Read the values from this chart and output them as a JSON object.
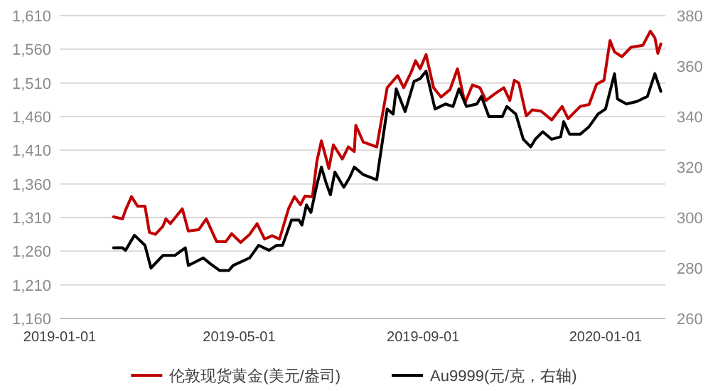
{
  "chart_data": {
    "type": "line",
    "xlim": [
      "2019-01-01",
      "2020-02-10"
    ],
    "xticks": [
      "2019-01-01",
      "2019-05-01",
      "2019-09-01",
      "2020-01-01"
    ],
    "ylim": [
      1160,
      1610
    ],
    "yticks": [
      {
        "value": 1160,
        "label": "1,160"
      },
      {
        "value": 1210,
        "label": "1,210"
      },
      {
        "value": 1260,
        "label": "1,260"
      },
      {
        "value": 1310,
        "label": "1,310"
      },
      {
        "value": 1360,
        "label": "1,360"
      },
      {
        "value": 1410,
        "label": "1,410"
      },
      {
        "value": 1460,
        "label": "1,460"
      },
      {
        "value": 1510,
        "label": "1,510"
      },
      {
        "value": 1560,
        "label": "1,560"
      },
      {
        "value": 1610,
        "label": "1,610"
      }
    ],
    "y2lim": [
      260,
      380
    ],
    "y2ticks": [
      260,
      280,
      300,
      320,
      340,
      360,
      380
    ],
    "grid": "y",
    "legend": "bottom",
    "marker": "none",
    "line_style": "solid",
    "series": [
      {
        "name": "伦敦现货黄金(美元/盎司)",
        "color": "#c00000",
        "x": [
          "2019-02-06",
          "2019-02-12",
          "2019-02-14",
          "2019-02-18",
          "2019-02-22",
          "2019-02-27",
          "2019-03-02",
          "2019-03-06",
          "2019-03-11",
          "2019-03-13",
          "2019-03-16",
          "2019-03-24",
          "2019-03-28",
          "2019-04-04",
          "2019-04-09",
          "2019-04-16",
          "2019-04-22",
          "2019-04-26",
          "2019-05-02",
          "2019-05-08",
          "2019-05-13",
          "2019-05-18",
          "2019-05-23",
          "2019-05-28",
          "2019-06-03",
          "2019-06-07",
          "2019-06-11",
          "2019-06-14",
          "2019-06-19",
          "2019-06-22",
          "2019-06-25",
          "2019-06-30",
          "2019-07-03",
          "2019-07-09",
          "2019-07-13",
          "2019-07-17",
          "2019-07-18",
          "2019-07-23",
          "2019-08-01",
          "2019-08-08",
          "2019-08-15",
          "2019-08-19",
          "2019-08-24",
          "2019-08-27",
          "2019-08-30",
          "2019-09-03",
          "2019-09-08",
          "2019-09-13",
          "2019-09-19",
          "2019-09-24",
          "2019-09-29",
          "2019-10-04",
          "2019-10-09",
          "2019-10-13",
          "2019-10-19",
          "2019-10-25",
          "2019-10-29",
          "2019-11-01",
          "2019-11-04",
          "2019-11-09",
          "2019-11-13",
          "2019-11-19",
          "2019-11-26",
          "2019-12-03",
          "2019-12-07",
          "2019-12-15",
          "2019-12-21",
          "2019-12-26",
          "2019-12-31",
          "2020-01-04",
          "2020-01-07",
          "2020-01-12",
          "2020-01-18",
          "2020-01-26",
          "2020-01-31",
          "2020-02-03",
          "2020-02-05",
          "2020-02-07"
        ],
        "values": [
          1311,
          1308,
          1321,
          1341,
          1327,
          1327,
          1288,
          1285,
          1297,
          1308,
          1301,
          1323,
          1290,
          1292,
          1308,
          1274,
          1274,
          1286,
          1273,
          1285,
          1301,
          1278,
          1283,
          1278,
          1323,
          1341,
          1329,
          1342,
          1341,
          1394,
          1424,
          1383,
          1418,
          1397,
          1415,
          1408,
          1447,
          1422,
          1415,
          1503,
          1521,
          1503,
          1526,
          1543,
          1531,
          1552,
          1503,
          1489,
          1500,
          1531,
          1480,
          1507,
          1503,
          1484,
          1494,
          1503,
          1484,
          1514,
          1510,
          1461,
          1470,
          1468,
          1455,
          1475,
          1457,
          1475,
          1478,
          1508,
          1514,
          1573,
          1556,
          1549,
          1563,
          1566,
          1587,
          1577,
          1554,
          1568
        ]
      },
      {
        "name": "Au9999(元/克，右轴)",
        "color": "#000000",
        "axis": "y2",
        "x": [
          "2019-02-06",
          "2019-02-12",
          "2019-02-14",
          "2019-02-20",
          "2019-02-27",
          "2019-03-03",
          "2019-03-11",
          "2019-03-19",
          "2019-03-26",
          "2019-03-28",
          "2019-04-07",
          "2019-04-11",
          "2019-04-18",
          "2019-04-24",
          "2019-04-27",
          "2019-05-08",
          "2019-05-14",
          "2019-05-21",
          "2019-05-26",
          "2019-05-30",
          "2019-06-05",
          "2019-06-10",
          "2019-06-12",
          "2019-06-15",
          "2019-06-18",
          "2019-06-22",
          "2019-06-25",
          "2019-06-28",
          "2019-07-01",
          "2019-07-04",
          "2019-07-10",
          "2019-07-14",
          "2019-07-17",
          "2019-07-23",
          "2019-08-01",
          "2019-08-08",
          "2019-08-12",
          "2019-08-14",
          "2019-08-20",
          "2019-08-26",
          "2019-08-30",
          "2019-09-03",
          "2019-09-09",
          "2019-09-16",
          "2019-09-21",
          "2019-09-25",
          "2019-09-30",
          "2019-10-07",
          "2019-10-10",
          "2019-10-15",
          "2019-10-24",
          "2019-10-27",
          "2019-11-02",
          "2019-11-07",
          "2019-11-12",
          "2019-11-15",
          "2019-11-20",
          "2019-11-26",
          "2019-12-02",
          "2019-12-04",
          "2019-12-08",
          "2019-12-15",
          "2019-12-21",
          "2019-12-27",
          "2020-01-01",
          "2020-01-07",
          "2020-01-09",
          "2020-01-15",
          "2020-01-22",
          "2020-01-29",
          "2020-02-03",
          "2020-02-07"
        ],
        "values": [
          288,
          288,
          287,
          293,
          289,
          280,
          285,
          285,
          288,
          281,
          284,
          282,
          279,
          279,
          281,
          284,
          289,
          287,
          289,
          289,
          299,
          299,
          297,
          305,
          302,
          313,
          320,
          314,
          309,
          318,
          312,
          316,
          320,
          317,
          315,
          343,
          341,
          351,
          342,
          354,
          355,
          358,
          343,
          345,
          344,
          351,
          344,
          345,
          348,
          340,
          340,
          344,
          341,
          331,
          328,
          331,
          334,
          331,
          332,
          338,
          333,
          333,
          336,
          341,
          343,
          357,
          347,
          345,
          346,
          348,
          357,
          350
        ]
      }
    ]
  }
}
